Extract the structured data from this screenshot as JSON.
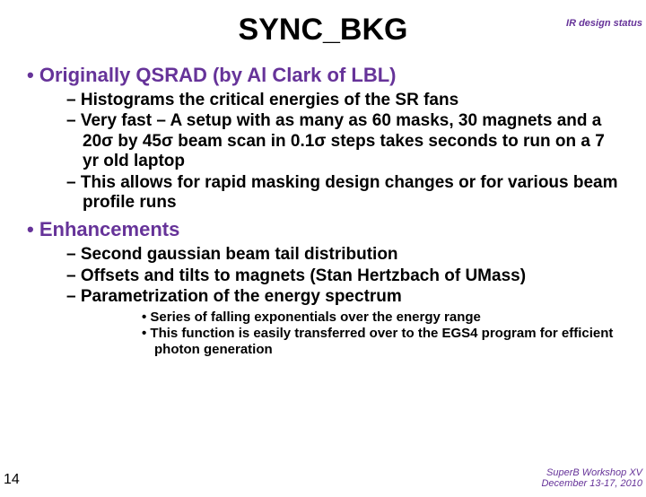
{
  "colors": {
    "accent": "#663399",
    "text": "#000000",
    "background": "#ffffff"
  },
  "header": {
    "right": "IR design status"
  },
  "title": "SYNC_BKG",
  "bullets": [
    {
      "text": "Originally QSRAD (by Al Clark of LBL)",
      "sub": [
        {
          "text": "Histograms the critical energies of the SR fans"
        },
        {
          "text": "Very fast – A setup with as many as 60 masks, 30 magnets and a 20σ by 45σ beam scan in 0.1σ steps takes seconds to run on a 7 yr old laptop"
        },
        {
          "text": "This allows for rapid masking design changes or for various beam profile runs"
        }
      ]
    },
    {
      "text": "Enhancements",
      "sub": [
        {
          "text": "Second gaussian beam tail distribution"
        },
        {
          "text": "Offsets and tilts to magnets (Stan Hertzbach of UMass)"
        },
        {
          "text": "Parametrization of the energy spectrum",
          "sub": [
            {
              "text": "Series of falling exponentials over the energy range"
            },
            {
              "text": "This function is easily transferred over to the EGS4 program for efficient photon generation"
            }
          ]
        }
      ]
    }
  ],
  "footer": {
    "page": "14",
    "right1": "SuperB Workshop XV",
    "right2": "December 13-17, 2010"
  },
  "typography": {
    "title_fontsize": 34,
    "l1_fontsize": 22,
    "l2_fontsize": 19,
    "l3_fontsize": 15,
    "header_fontsize": 11,
    "footer_fontsize": 11
  }
}
